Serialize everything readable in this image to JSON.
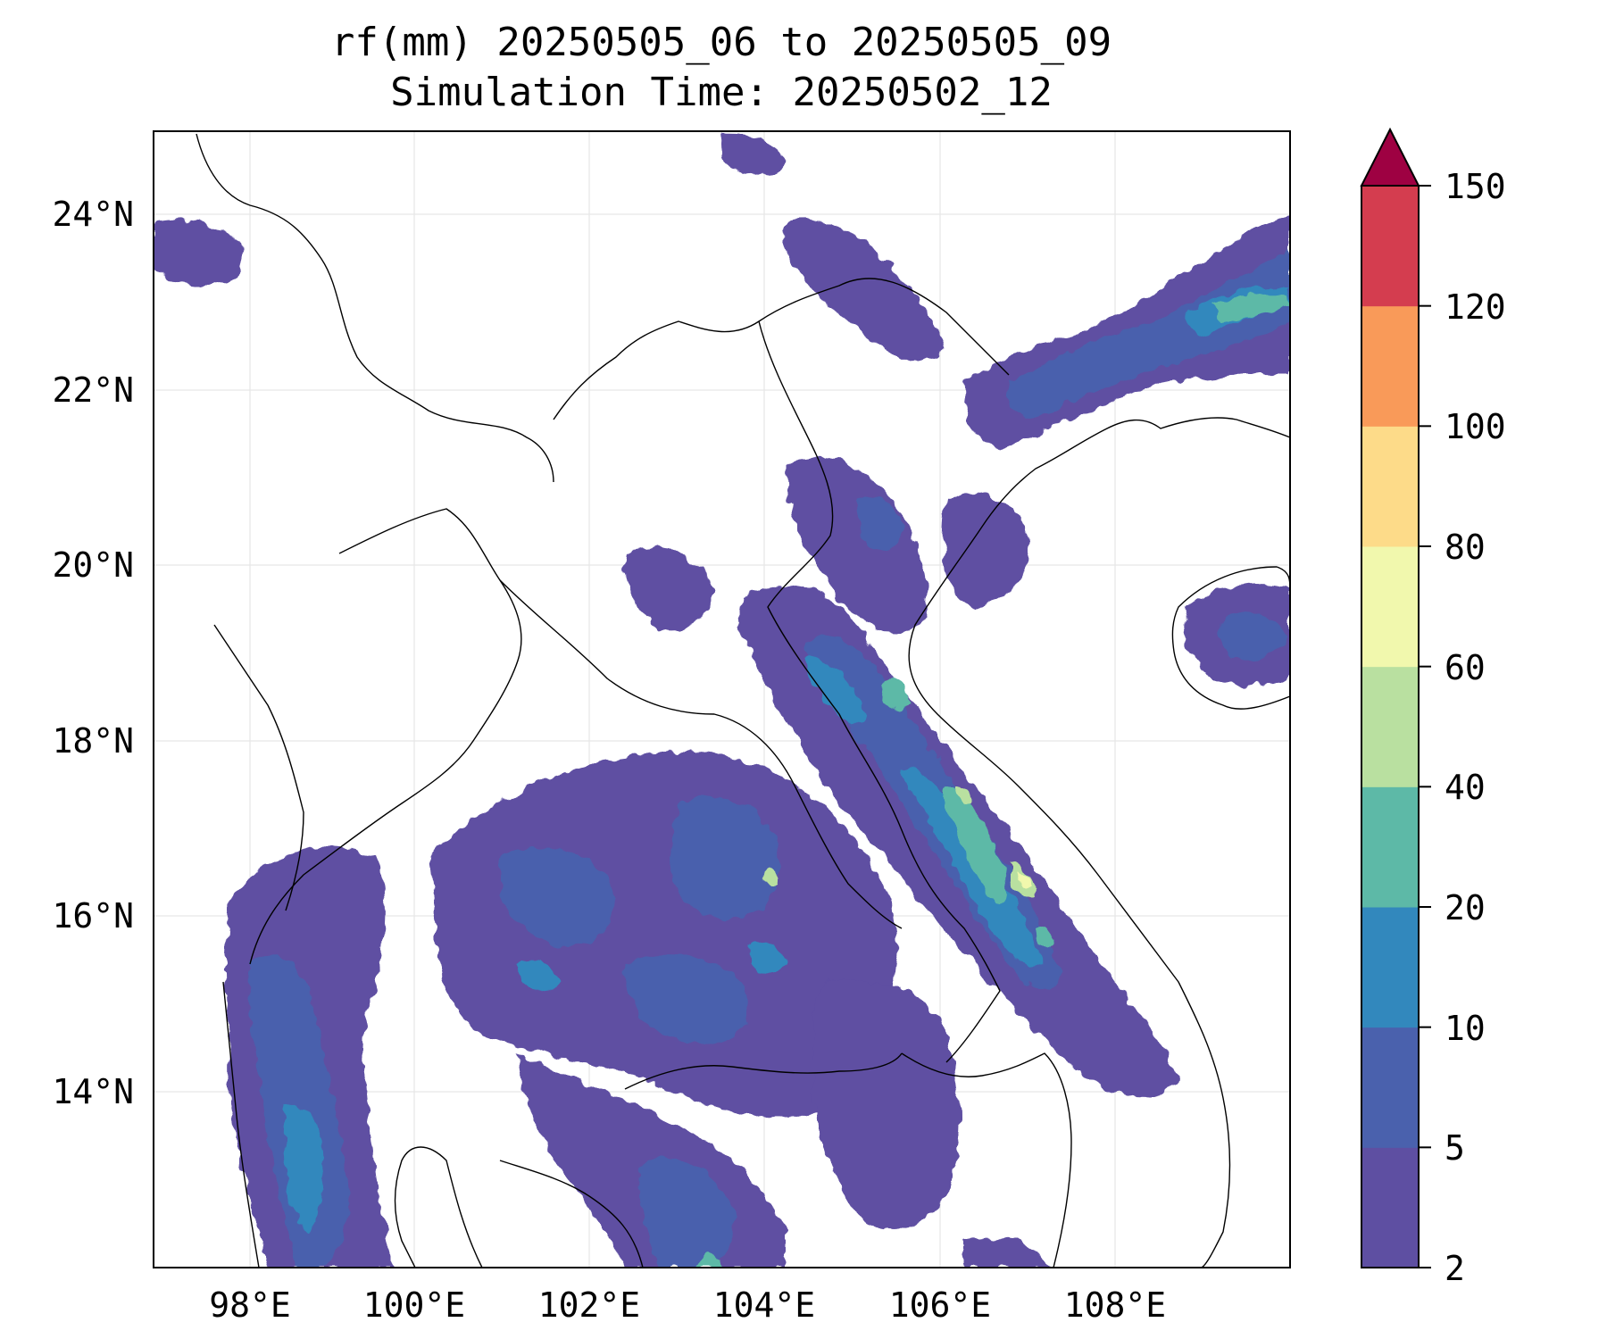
{
  "title_line1": "rf(mm) 20250505_06 to 20250505_09",
  "title_line2": "Simulation Time: 20250502_12",
  "map": {
    "lon_range": [
      97,
      110
    ],
    "lat_range": [
      12,
      25
    ],
    "lon_ticks": [
      "98°E",
      "100°E",
      "102°E",
      "104°E",
      "106°E",
      "108°E"
    ],
    "lat_ticks": [
      "24°N",
      "22°N",
      "20°N",
      "18°N",
      "16°N",
      "14°N"
    ],
    "gridlines": true
  },
  "colorbar": {
    "levels": [
      "2",
      "5",
      "10",
      "20",
      "40",
      "60",
      "80",
      "100",
      "120",
      "150"
    ],
    "colors": [
      "#5e4fa2",
      "#4a61ad",
      "#3288bd",
      "#5db9a7",
      "#b9e0a0",
      "#f1f8ad",
      "#fddb89",
      "#f99a59",
      "#d43d4f",
      "#9e0142"
    ],
    "extend": "max"
  }
}
